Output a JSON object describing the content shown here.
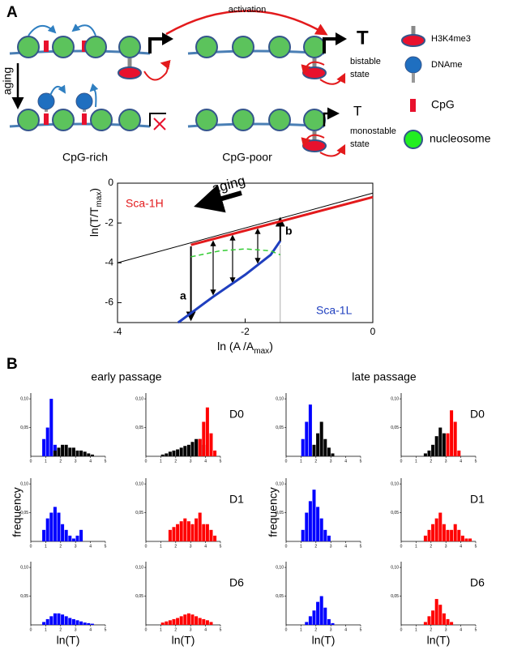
{
  "panel_a": {
    "label": "A",
    "activation": "activation",
    "aging": "aging",
    "states": [
      {
        "T": "T",
        "line1": "bistable",
        "line2": "state"
      },
      {
        "T": "T",
        "line1": "monostable",
        "line2": "state"
      }
    ],
    "columns": [
      "CpG-rich",
      "CpG-poor"
    ],
    "legend": [
      "H3K4me3",
      "DNAme",
      "CpG",
      "nucleosome"
    ]
  },
  "panel_b": {
    "label": "B",
    "titles": [
      "early passage",
      "late passage"
    ],
    "days": [
      "D0",
      "D1",
      "D6"
    ],
    "ylabel": "frequency"
  },
  "chart_data": [
    {
      "type": "line",
      "xlim": [
        -4,
        0
      ],
      "ylim": [
        -7,
        0
      ],
      "xticks": [
        -4,
        -2,
        0
      ],
      "yticks": [
        -6,
        -4,
        -2,
        0
      ],
      "xlabel": {
        "main": "ln (A /A",
        "sub": "max",
        "end": ")"
      },
      "ylabel": {
        "main": "ln(T/T",
        "sub": "max",
        "end": ")"
      },
      "annotations": {
        "aging": "aging",
        "a": "a",
        "b": "b"
      },
      "series": [
        {
          "color": "#000000",
          "x": [
            -4,
            0
          ],
          "values": [
            -4,
            -0.5
          ]
        },
        {
          "name": "Sca-1H",
          "color": "#e31a1c",
          "x": [
            -2.85,
            0
          ],
          "values": [
            -3.1,
            -0.7
          ]
        },
        {
          "name": "Sca-1L",
          "color": "#1f3fbf",
          "x": [
            -3.05,
            -2.5,
            -2,
            -1.6,
            -1.45
          ],
          "values": [
            -7,
            -5.7,
            -4.6,
            -3.6,
            -2.9
          ]
        },
        {
          "color": "#33cc33",
          "dashed": true,
          "x": [
            -2.85,
            -2.4,
            -2,
            -1.6,
            -1.45
          ],
          "values": [
            -3.7,
            -3.4,
            -3.3,
            -3.4,
            -3.6
          ]
        }
      ]
    },
    {
      "type": "histogram",
      "xlim": [
        0,
        5
      ],
      "ylim": [
        0,
        0.11
      ],
      "xticks": [
        0,
        1,
        2,
        3,
        4,
        5
      ],
      "yticks": [
        {
          "value": 0.05,
          "label": "0,05"
        },
        {
          "value": 0.1,
          "label": "0,10"
        }
      ],
      "bins": [
        0,
        0.25,
        0.5,
        0.75,
        1,
        1.25,
        1.5,
        1.75,
        2,
        2.25,
        2.5,
        2.75,
        3,
        3.25,
        3.5,
        3.75,
        4,
        4.25,
        4.5,
        4.75,
        5
      ],
      "series": [
        {
          "color": "#0000ff",
          "values": [
            0,
            0,
            0,
            0.03,
            0.05,
            0.1,
            0.02,
            0,
            0,
            0,
            0,
            0,
            0,
            0,
            0,
            0,
            0,
            0,
            0,
            0
          ]
        },
        {
          "color": "#000000",
          "values": [
            0,
            0,
            0,
            0,
            0,
            0,
            0.01,
            0.015,
            0.02,
            0.02,
            0.015,
            0.015,
            0.01,
            0.01,
            0.008,
            0.005,
            0.003,
            0,
            0,
            0
          ]
        }
      ]
    },
    {
      "type": "histogram",
      "xlim": [
        0,
        5
      ],
      "ylim": [
        0,
        0.11
      ],
      "xticks": [
        0,
        1,
        2,
        3,
        4,
        5
      ],
      "yticks": [
        {
          "value": 0.05,
          "label": "0,05"
        },
        {
          "value": 0.1,
          "label": "0,10"
        }
      ],
      "bins": [
        0,
        0.25,
        0.5,
        0.75,
        1,
        1.25,
        1.5,
        1.75,
        2,
        2.25,
        2.5,
        2.75,
        3,
        3.25,
        3.5,
        3.75,
        4,
        4.25,
        4.5,
        4.75,
        5
      ],
      "series": [
        {
          "color": "#000000",
          "values": [
            0,
            0,
            0,
            0,
            0.003,
            0.005,
            0.008,
            0.01,
            0.012,
            0.015,
            0.018,
            0.02,
            0.025,
            0.03,
            0.03,
            0.02,
            0,
            0,
            0,
            0
          ]
        },
        {
          "color": "#ff0000",
          "values": [
            0,
            0,
            0,
            0,
            0,
            0,
            0,
            0,
            0,
            0,
            0,
            0,
            0,
            0,
            0.03,
            0.06,
            0.085,
            0.04,
            0.01,
            0
          ]
        }
      ]
    },
    {
      "type": "histogram",
      "xlim": [
        0,
        5
      ],
      "ylim": [
        0,
        0.11
      ],
      "xticks": [
        0,
        1,
        2,
        3,
        4,
        5
      ],
      "yticks": [
        {
          "value": 0.05,
          "label": "0,05"
        },
        {
          "value": 0.1,
          "label": "0,10"
        }
      ],
      "bins": [
        0,
        0.25,
        0.5,
        0.75,
        1,
        1.25,
        1.5,
        1.75,
        2,
        2.25,
        2.5,
        2.75,
        3,
        3.25,
        3.5,
        3.75,
        4,
        4.25,
        4.5,
        4.75,
        5
      ],
      "series": [
        {
          "color": "#0000ff",
          "values": [
            0,
            0,
            0,
            0.02,
            0.04,
            0.05,
            0.06,
            0.05,
            0.03,
            0.02,
            0.01,
            0.005,
            0.01,
            0.02,
            0,
            0,
            0,
            0,
            0,
            0
          ]
        }
      ]
    },
    {
      "type": "histogram",
      "xlim": [
        0,
        5
      ],
      "ylim": [
        0,
        0.11
      ],
      "xticks": [
        0,
        1,
        2,
        3,
        4,
        5
      ],
      "yticks": [
        {
          "value": 0.05,
          "label": "0,05"
        },
        {
          "value": 0.1,
          "label": "0,10"
        }
      ],
      "bins": [
        0,
        0.25,
        0.5,
        0.75,
        1,
        1.25,
        1.5,
        1.75,
        2,
        2.25,
        2.5,
        2.75,
        3,
        3.25,
        3.5,
        3.75,
        4,
        4.25,
        4.5,
        4.75,
        5
      ],
      "series": [
        {
          "color": "#ff0000",
          "values": [
            0,
            0,
            0,
            0,
            0,
            0,
            0.02,
            0.025,
            0.03,
            0.035,
            0.04,
            0.035,
            0.03,
            0.04,
            0.05,
            0.03,
            0.03,
            0.02,
            0.01,
            0
          ]
        }
      ]
    },
    {
      "type": "histogram",
      "xlim": [
        0,
        5
      ],
      "ylim": [
        0,
        0.11
      ],
      "xticks": [
        0,
        1,
        2,
        3,
        4,
        5
      ],
      "yticks": [
        {
          "value": 0.05,
          "label": "0,05"
        },
        {
          "value": 0.1,
          "label": "0,10"
        }
      ],
      "xlabel": "ln(T)",
      "bins": [
        0,
        0.25,
        0.5,
        0.75,
        1,
        1.25,
        1.5,
        1.75,
        2,
        2.25,
        2.5,
        2.75,
        3,
        3.25,
        3.5,
        3.75,
        4,
        4.25,
        4.5,
        4.75,
        5
      ],
      "series": [
        {
          "color": "#0000ff",
          "values": [
            0,
            0,
            0,
            0.005,
            0.01,
            0.015,
            0.02,
            0.02,
            0.018,
            0.015,
            0.012,
            0.01,
            0.008,
            0.006,
            0.004,
            0.003,
            0.002,
            0,
            0,
            0
          ]
        }
      ]
    },
    {
      "type": "histogram",
      "xlim": [
        0,
        5
      ],
      "ylim": [
        0,
        0.11
      ],
      "xticks": [
        0,
        1,
        2,
        3,
        4,
        5
      ],
      "yticks": [
        {
          "value": 0.05,
          "label": "0,05"
        },
        {
          "value": 0.1,
          "label": "0,10"
        }
      ],
      "xlabel": "ln(T)",
      "bins": [
        0,
        0.25,
        0.5,
        0.75,
        1,
        1.25,
        1.5,
        1.75,
        2,
        2.25,
        2.5,
        2.75,
        3,
        3.25,
        3.5,
        3.75,
        4,
        4.25,
        4.5,
        4.75,
        5
      ],
      "series": [
        {
          "color": "#ff0000",
          "values": [
            0,
            0,
            0,
            0,
            0.004,
            0.006,
            0.008,
            0.01,
            0.012,
            0.015,
            0.018,
            0.02,
            0.018,
            0.015,
            0.012,
            0.01,
            0.008,
            0.005,
            0,
            0
          ]
        }
      ]
    },
    {
      "type": "histogram",
      "xlim": [
        0,
        5
      ],
      "ylim": [
        0,
        0.11
      ],
      "xticks": [
        0,
        1,
        2,
        3,
        4,
        5
      ],
      "yticks": [
        {
          "value": 0.05,
          "label": "0,05"
        },
        {
          "value": 0.1,
          "label": "0,10"
        }
      ],
      "bins": [
        0,
        0.25,
        0.5,
        0.75,
        1,
        1.25,
        1.5,
        1.75,
        2,
        2.25,
        2.5,
        2.75,
        3,
        3.25,
        3.5,
        3.75,
        4,
        4.25,
        4.5,
        4.75,
        5
      ],
      "series": [
        {
          "color": "#0000ff",
          "values": [
            0,
            0,
            0,
            0,
            0.03,
            0.06,
            0.09,
            0,
            0,
            0,
            0,
            0,
            0,
            0,
            0,
            0,
            0,
            0,
            0,
            0
          ]
        },
        {
          "color": "#000000",
          "values": [
            0,
            0,
            0,
            0,
            0,
            0,
            0,
            0.02,
            0.04,
            0.06,
            0.03,
            0.015,
            0.005,
            0,
            0,
            0,
            0,
            0,
            0,
            0
          ]
        }
      ]
    },
    {
      "type": "histogram",
      "xlim": [
        0,
        5
      ],
      "ylim": [
        0,
        0.11
      ],
      "xticks": [
        0,
        1,
        2,
        3,
        4,
        5
      ],
      "yticks": [
        {
          "value": 0.05,
          "label": "0,05"
        },
        {
          "value": 0.1,
          "label": "0,10"
        }
      ],
      "bins": [
        0,
        0.25,
        0.5,
        0.75,
        1,
        1.25,
        1.5,
        1.75,
        2,
        2.25,
        2.5,
        2.75,
        3,
        3.25,
        3.5,
        3.75,
        4,
        4.25,
        4.5,
        4.75,
        5
      ],
      "series": [
        {
          "color": "#000000",
          "values": [
            0,
            0,
            0,
            0,
            0,
            0,
            0.005,
            0.01,
            0.02,
            0.035,
            0.05,
            0.04,
            0,
            0,
            0,
            0,
            0,
            0,
            0,
            0
          ]
        },
        {
          "color": "#ff0000",
          "values": [
            0,
            0,
            0,
            0,
            0,
            0,
            0,
            0,
            0,
            0,
            0,
            0,
            0.04,
            0.08,
            0.06,
            0.01,
            0,
            0,
            0,
            0
          ]
        }
      ]
    },
    {
      "type": "histogram",
      "xlim": [
        0,
        5
      ],
      "ylim": [
        0,
        0.11
      ],
      "xticks": [
        0,
        1,
        2,
        3,
        4,
        5
      ],
      "yticks": [
        {
          "value": 0.05,
          "label": "0,05"
        },
        {
          "value": 0.1,
          "label": "0,10"
        }
      ],
      "bins": [
        0,
        0.25,
        0.5,
        0.75,
        1,
        1.25,
        1.5,
        1.75,
        2,
        2.25,
        2.5,
        2.75,
        3,
        3.25,
        3.5,
        3.75,
        4,
        4.25,
        4.5,
        4.75,
        5
      ],
      "series": [
        {
          "color": "#0000ff",
          "values": [
            0,
            0,
            0,
            0,
            0.02,
            0.05,
            0.07,
            0.09,
            0.06,
            0.04,
            0.02,
            0.01,
            0,
            0,
            0,
            0,
            0,
            0,
            0,
            0
          ]
        }
      ]
    },
    {
      "type": "histogram",
      "xlim": [
        0,
        5
      ],
      "ylim": [
        0,
        0.11
      ],
      "xticks": [
        0,
        1,
        2,
        3,
        4,
        5
      ],
      "yticks": [
        {
          "value": 0.05,
          "label": "0,05"
        },
        {
          "value": 0.1,
          "label": "0,10"
        }
      ],
      "bins": [
        0,
        0.25,
        0.5,
        0.75,
        1,
        1.25,
        1.5,
        1.75,
        2,
        2.25,
        2.5,
        2.75,
        3,
        3.25,
        3.5,
        3.75,
        4,
        4.25,
        4.5,
        4.75,
        5
      ],
      "series": [
        {
          "color": "#ff0000",
          "values": [
            0,
            0,
            0,
            0,
            0,
            0,
            0.01,
            0.02,
            0.03,
            0.04,
            0.05,
            0.03,
            0.02,
            0.02,
            0.03,
            0.02,
            0.01,
            0.005,
            0.005,
            0
          ]
        }
      ]
    },
    {
      "type": "histogram",
      "xlim": [
        0,
        5
      ],
      "ylim": [
        0,
        0.11
      ],
      "xticks": [
        0,
        1,
        2,
        3,
        4,
        5
      ],
      "yticks": [
        {
          "value": 0.05,
          "label": "0,05"
        },
        {
          "value": 0.1,
          "label": "0,10"
        }
      ],
      "xlabel": "ln(T)",
      "bins": [
        0,
        0.25,
        0.5,
        0.75,
        1,
        1.25,
        1.5,
        1.75,
        2,
        2.25,
        2.5,
        2.75,
        3,
        3.25,
        3.5,
        3.75,
        4,
        4.25,
        4.5,
        4.75,
        5
      ],
      "series": [
        {
          "color": "#0000ff",
          "values": [
            0,
            0,
            0,
            0,
            0,
            0.005,
            0.015,
            0.025,
            0.04,
            0.05,
            0.03,
            0.01,
            0.003,
            0,
            0,
            0,
            0,
            0,
            0,
            0
          ]
        }
      ]
    },
    {
      "type": "histogram",
      "xlim": [
        0,
        5
      ],
      "ylim": [
        0,
        0.11
      ],
      "xticks": [
        0,
        1,
        2,
        3,
        4,
        5
      ],
      "yticks": [
        {
          "value": 0.05,
          "label": "0,05"
        },
        {
          "value": 0.1,
          "label": "0,10"
        }
      ],
      "xlabel": "ln(T)",
      "bins": [
        0,
        0.25,
        0.5,
        0.75,
        1,
        1.25,
        1.5,
        1.75,
        2,
        2.25,
        2.5,
        2.75,
        3,
        3.25,
        3.5,
        3.75,
        4,
        4.25,
        4.5,
        4.75,
        5
      ],
      "series": [
        {
          "color": "#ff0000",
          "values": [
            0,
            0,
            0,
            0,
            0,
            0,
            0.005,
            0.015,
            0.025,
            0.045,
            0.035,
            0.02,
            0.01,
            0.005,
            0,
            0,
            0,
            0,
            0,
            0
          ]
        }
      ]
    }
  ]
}
